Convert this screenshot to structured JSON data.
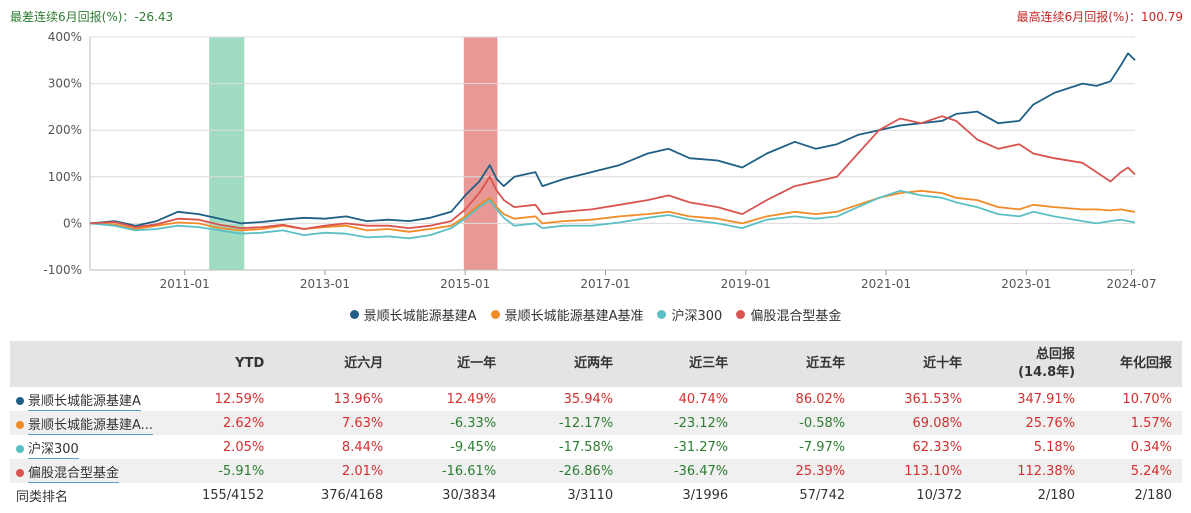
{
  "header": {
    "worst_label": "最差连续6月回报(%)：-26.43",
    "best_label": "最高连续6月回报(%)：100.79"
  },
  "chart_data": {
    "type": "line",
    "title": "",
    "xlabel": "",
    "ylabel": "",
    "ylim": [
      -100,
      400
    ],
    "y_ticks": [
      -100,
      0,
      100,
      200,
      300,
      400
    ],
    "y_tick_labels": [
      "-100%",
      "0%",
      "100%",
      "200%",
      "300%",
      "400%"
    ],
    "x_range": [
      2009.65,
      2024.55
    ],
    "x_ticks": [
      2011.0,
      2013.0,
      2015.0,
      2017.0,
      2019.0,
      2021.0,
      2023.0,
      2024.5
    ],
    "x_tick_labels": [
      "2011-01",
      "2013-01",
      "2015-01",
      "2017-01",
      "2019-01",
      "2021-01",
      "2023-01",
      "2024-07"
    ],
    "shaded_periods": [
      {
        "start": 2011.35,
        "end": 2011.85,
        "color": "#5fc49a",
        "meaning": "worst"
      },
      {
        "start": 2014.98,
        "end": 2015.46,
        "color": "#d9534f",
        "meaning": "best"
      }
    ],
    "grid": "horizontal",
    "legend_position": "bottom",
    "series": [
      {
        "name": "景顺长城能源基建A",
        "color": "#1f5f86",
        "x": [
          2009.65,
          2010.0,
          2010.3,
          2010.6,
          2010.9,
          2011.2,
          2011.5,
          2011.8,
          2012.1,
          2012.4,
          2012.7,
          2013.0,
          2013.3,
          2013.6,
          2013.9,
          2014.2,
          2014.5,
          2014.8,
          2015.0,
          2015.2,
          2015.35,
          2015.45,
          2015.55,
          2015.7,
          2016.0,
          2016.1,
          2016.4,
          2016.8,
          2017.2,
          2017.6,
          2017.9,
          2018.2,
          2018.6,
          2018.95,
          2019.3,
          2019.7,
          2020.0,
          2020.3,
          2020.6,
          2020.9,
          2021.2,
          2021.5,
          2021.8,
          2022.0,
          2022.3,
          2022.6,
          2022.9,
          2023.1,
          2023.4,
          2023.8,
          2024.0,
          2024.2,
          2024.35,
          2024.45,
          2024.55
        ],
        "y": [
          0,
          5,
          -5,
          5,
          25,
          20,
          10,
          0,
          3,
          8,
          12,
          10,
          15,
          5,
          8,
          5,
          12,
          25,
          60,
          90,
          125,
          95,
          80,
          100,
          110,
          80,
          95,
          110,
          125,
          150,
          160,
          140,
          135,
          120,
          150,
          175,
          160,
          170,
          190,
          200,
          210,
          215,
          220,
          235,
          240,
          215,
          220,
          255,
          280,
          300,
          295,
          305,
          340,
          365,
          350
        ]
      },
      {
        "name": "景顺长城能源基建A基准",
        "color": "#f08c28",
        "x": [
          2009.65,
          2010.0,
          2010.3,
          2010.6,
          2010.9,
          2011.2,
          2011.5,
          2011.8,
          2012.1,
          2012.4,
          2012.7,
          2013.0,
          2013.3,
          2013.6,
          2013.9,
          2014.2,
          2014.5,
          2014.8,
          2015.0,
          2015.2,
          2015.35,
          2015.45,
          2015.55,
          2015.7,
          2016.0,
          2016.1,
          2016.4,
          2016.8,
          2017.2,
          2017.6,
          2017.9,
          2018.2,
          2018.6,
          2018.95,
          2019.3,
          2019.7,
          2020.0,
          2020.3,
          2020.6,
          2020.9,
          2021.2,
          2021.5,
          2021.8,
          2022.0,
          2022.3,
          2022.6,
          2022.9,
          2023.1,
          2023.4,
          2023.8,
          2024.0,
          2024.2,
          2024.35,
          2024.45,
          2024.55
        ],
        "y": [
          0,
          -2,
          -12,
          -5,
          2,
          0,
          -10,
          -15,
          -12,
          -5,
          -12,
          -8,
          -5,
          -15,
          -12,
          -18,
          -12,
          -5,
          15,
          40,
          55,
          35,
          20,
          10,
          15,
          0,
          5,
          8,
          15,
          20,
          25,
          15,
          10,
          0,
          15,
          25,
          20,
          25,
          40,
          55,
          65,
          70,
          65,
          55,
          50,
          35,
          30,
          40,
          35,
          30,
          30,
          28,
          30,
          27,
          25
        ]
      },
      {
        "name": "沪深300",
        "color": "#5bc0c4",
        "x": [
          2009.65,
          2010.0,
          2010.3,
          2010.6,
          2010.9,
          2011.2,
          2011.5,
          2011.8,
          2012.1,
          2012.4,
          2012.7,
          2013.0,
          2013.3,
          2013.6,
          2013.9,
          2014.2,
          2014.5,
          2014.8,
          2015.0,
          2015.2,
          2015.35,
          2015.45,
          2015.55,
          2015.7,
          2016.0,
          2016.1,
          2016.4,
          2016.8,
          2017.2,
          2017.6,
          2017.9,
          2018.2,
          2018.6,
          2018.95,
          2019.3,
          2019.7,
          2020.0,
          2020.3,
          2020.6,
          2020.9,
          2021.2,
          2021.5,
          2021.8,
          2022.0,
          2022.3,
          2022.6,
          2022.9,
          2023.1,
          2023.4,
          2023.8,
          2024.0,
          2024.2,
          2024.35,
          2024.45,
          2024.55
        ],
        "y": [
          0,
          -5,
          -15,
          -12,
          -5,
          -8,
          -15,
          -22,
          -20,
          -15,
          -25,
          -20,
          -22,
          -30,
          -28,
          -32,
          -25,
          -10,
          10,
          35,
          50,
          30,
          12,
          -5,
          0,
          -10,
          -5,
          -5,
          2,
          12,
          18,
          8,
          0,
          -10,
          8,
          15,
          10,
          15,
          35,
          55,
          70,
          60,
          55,
          45,
          35,
          20,
          15,
          25,
          15,
          5,
          0,
          5,
          8,
          5,
          2
        ]
      },
      {
        "name": "偏股混合型基金",
        "color": "#d9534f",
        "x": [
          2009.65,
          2010.0,
          2010.3,
          2010.6,
          2010.9,
          2011.2,
          2011.5,
          2011.8,
          2012.1,
          2012.4,
          2012.7,
          2013.0,
          2013.3,
          2013.6,
          2013.9,
          2014.2,
          2014.5,
          2014.8,
          2015.0,
          2015.2,
          2015.35,
          2015.45,
          2015.55,
          2015.7,
          2016.0,
          2016.1,
          2016.4,
          2016.8,
          2017.2,
          2017.6,
          2017.9,
          2018.2,
          2018.6,
          2018.95,
          2019.3,
          2019.7,
          2020.0,
          2020.3,
          2020.6,
          2020.9,
          2021.2,
          2021.5,
          2021.8,
          2022.0,
          2022.3,
          2022.6,
          2022.9,
          2023.1,
          2023.4,
          2023.8,
          2024.0,
          2024.2,
          2024.35,
          2024.45,
          2024.55
        ],
        "y": [
          0,
          3,
          -8,
          -2,
          10,
          8,
          -3,
          -10,
          -8,
          -3,
          -12,
          -5,
          0,
          -5,
          -5,
          -10,
          -5,
          5,
          30,
          65,
          100,
          70,
          50,
          35,
          40,
          20,
          25,
          30,
          40,
          50,
          60,
          45,
          35,
          20,
          50,
          80,
          90,
          100,
          150,
          200,
          225,
          215,
          230,
          220,
          180,
          160,
          170,
          150,
          140,
          130,
          110,
          90,
          110,
          120,
          105
        ]
      }
    ]
  },
  "table": {
    "headers": [
      "",
      "YTD",
      "近六月",
      "近一年",
      "近两年",
      "近三年",
      "近五年",
      "近十年",
      "总回报",
      "年化回报"
    ],
    "header_sub": {
      "total": "(14.8年)"
    },
    "rows": [
      {
        "name": "景顺长城能源基建A",
        "color": "#1f5f86",
        "values": [
          "12.59%",
          "13.96%",
          "12.49%",
          "35.94%",
          "40.74%",
          "86.02%",
          "361.53%",
          "347.91%",
          "10.70%"
        ]
      },
      {
        "name": "景顺长城能源基建A...",
        "color": "#f08c28",
        "values": [
          "2.62%",
          "7.63%",
          "-6.33%",
          "-12.17%",
          "-23.12%",
          "-0.58%",
          "69.08%",
          "25.76%",
          "1.57%"
        ]
      },
      {
        "name": "沪深300",
        "color": "#5bc0c4",
        "values": [
          "2.05%",
          "8.44%",
          "-9.45%",
          "-17.58%",
          "-31.27%",
          "-7.97%",
          "62.33%",
          "5.18%",
          "0.34%"
        ]
      },
      {
        "name": "偏股混合型基金",
        "color": "#d9534f",
        "values": [
          "-5.91%",
          "2.01%",
          "-16.61%",
          "-26.86%",
          "-36.47%",
          "25.39%",
          "113.10%",
          "112.38%",
          "5.24%"
        ]
      }
    ],
    "rank_row": {
      "name": "同类排名",
      "values": [
        "155/4152",
        "376/4168",
        "30/3834",
        "3/3110",
        "3/1996",
        "57/742",
        "10/372",
        "2/180",
        "2/180"
      ]
    }
  }
}
